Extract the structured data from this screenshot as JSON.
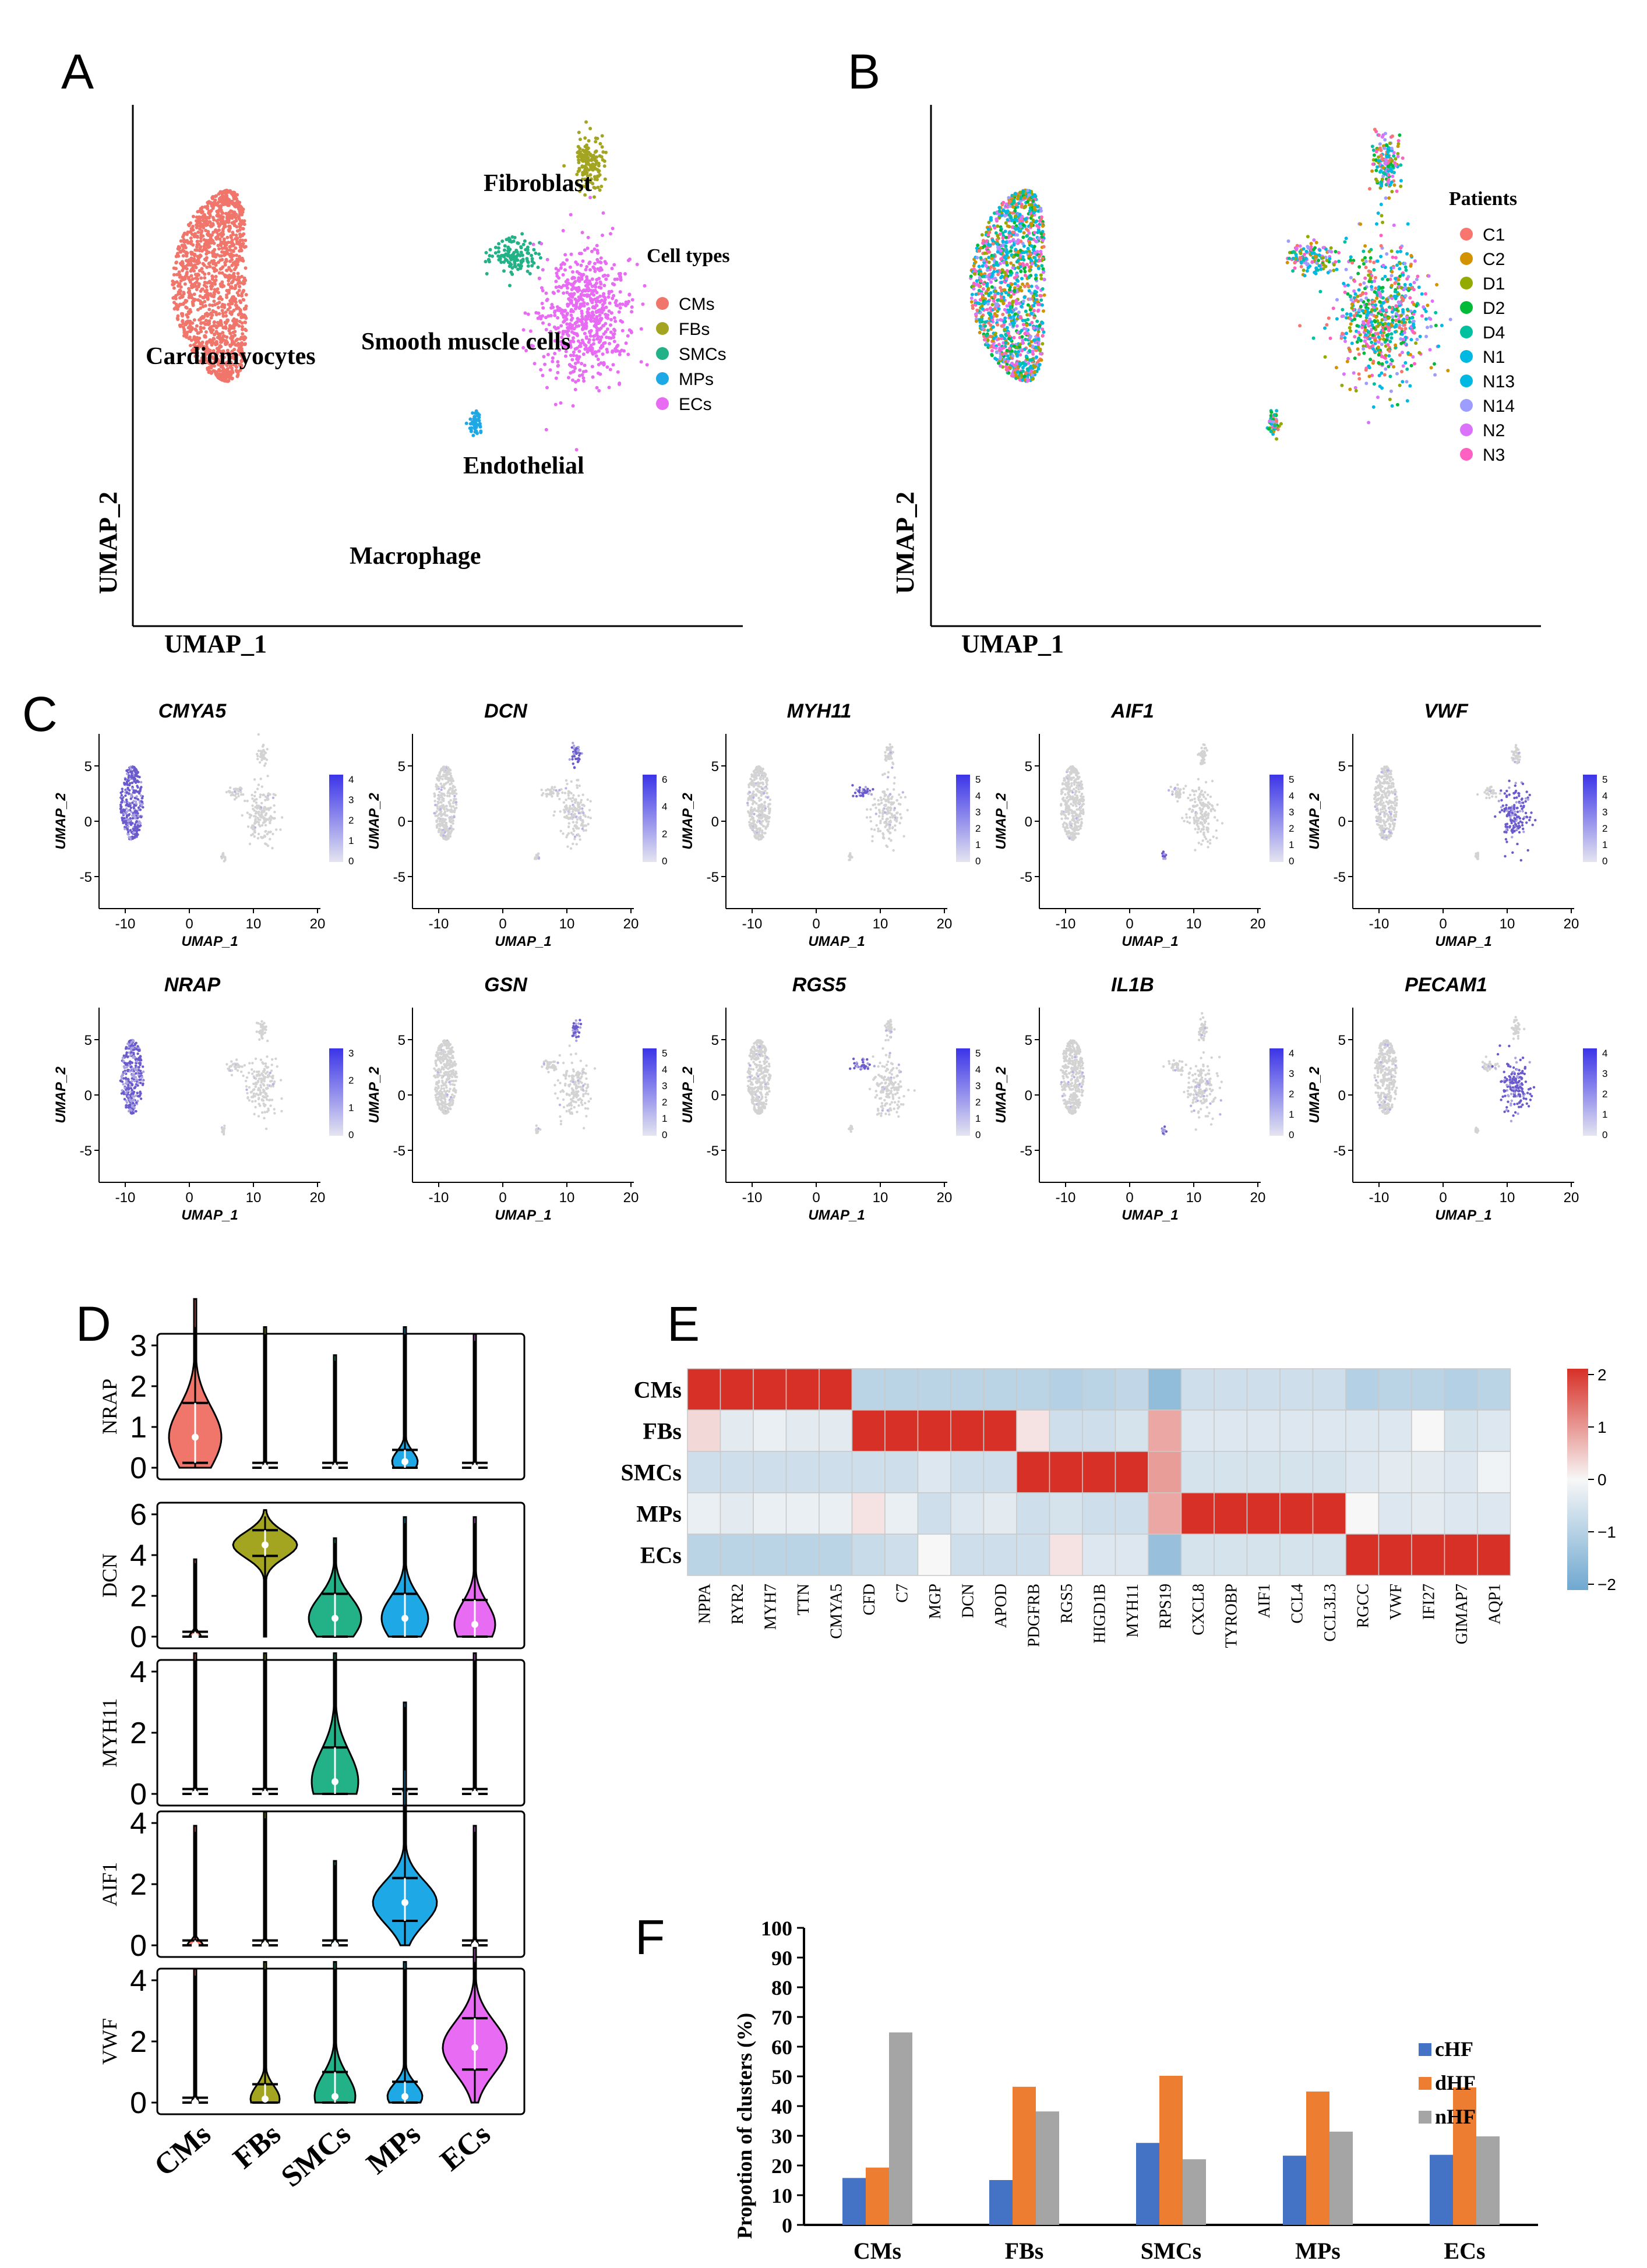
{
  "panels": {
    "A": {
      "label": "A",
      "xlabel": "UMAP_1",
      "ylabel": "UMAP_2",
      "legend_title": "Cell types",
      "legend": [
        {
          "name": "CMs",
          "color": "#F0756B"
        },
        {
          "name": "FBs",
          "color": "#A3A520"
        },
        {
          "name": "SMCs",
          "color": "#23B187"
        },
        {
          "name": "MPs",
          "color": "#1EA8E6"
        },
        {
          "name": "ECs",
          "color": "#E76BF3"
        }
      ],
      "annotations": [
        "Fibroblast",
        "Cardiomyocytes",
        "Smooth muscle cells",
        "Endothelial",
        "Macrophage"
      ]
    },
    "B": {
      "label": "B",
      "xlabel": "UMAP_1",
      "ylabel": "UMAP_2",
      "legend_title": "Patients",
      "legend": [
        {
          "name": "C1",
          "color": "#F8766D"
        },
        {
          "name": "C2",
          "color": "#D39200"
        },
        {
          "name": "D1",
          "color": "#93AA00"
        },
        {
          "name": "D2",
          "color": "#00BA38"
        },
        {
          "name": "D4",
          "color": "#00C19F"
        },
        {
          "name": "N1",
          "color": "#00B9E3"
        },
        {
          "name": "N13",
          "color": "#00B9E3"
        },
        {
          "name": "N14",
          "color": "#9D9DFF"
        },
        {
          "name": "N2",
          "color": "#DB72FB"
        },
        {
          "name": "N3",
          "color": "#FF61C3"
        }
      ]
    },
    "C": {
      "label": "C",
      "xlabel": "UMAP_1",
      "ylabel": "UMAP_2",
      "xticks": [
        "-10",
        "0",
        "10",
        "20"
      ],
      "yticks": [
        "5",
        "0",
        "-5"
      ],
      "genes": [
        {
          "name": "CMYA5",
          "cluster": "CMs",
          "scale": [
            "4",
            "3",
            "2",
            "1",
            "0"
          ]
        },
        {
          "name": "DCN",
          "cluster": "FBs",
          "scale": [
            "6",
            "4",
            "2",
            "0"
          ]
        },
        {
          "name": "MYH11",
          "cluster": "SMCs",
          "scale": [
            "5",
            "4",
            "3",
            "2",
            "1",
            "0"
          ]
        },
        {
          "name": "AIF1",
          "cluster": "MPs",
          "scale": [
            "5",
            "4",
            "3",
            "2",
            "1",
            "0"
          ]
        },
        {
          "name": "VWF",
          "cluster": "ECs",
          "scale": [
            "5",
            "4",
            "3",
            "2",
            "1",
            "0"
          ]
        },
        {
          "name": "NRAP",
          "cluster": "CMs",
          "scale": [
            "3",
            "2",
            "1",
            "0"
          ]
        },
        {
          "name": "GSN",
          "cluster": "FBs",
          "scale": [
            "5",
            "4",
            "3",
            "2",
            "1",
            "0"
          ]
        },
        {
          "name": "RGS5",
          "cluster": "SMCs",
          "scale": [
            "5",
            "4",
            "3",
            "2",
            "1",
            "0"
          ]
        },
        {
          "name": "IL1B",
          "cluster": "MPs",
          "scale": [
            "4",
            "3",
            "2",
            "1",
            "0"
          ]
        },
        {
          "name": "PECAM1",
          "cluster": "ECs",
          "scale": [
            "4",
            "3",
            "2",
            "1",
            "0"
          ]
        }
      ]
    },
    "D": {
      "label": "D",
      "categories": [
        "CMs",
        "FBs",
        "SMCs",
        "MPs",
        "ECs"
      ],
      "rows": [
        {
          "gene": "NRAP",
          "ticks": [
            "3",
            "2",
            "1",
            "0"
          ],
          "max": 3,
          "color_idx": 0
        },
        {
          "gene": "DCN",
          "ticks": [
            "6",
            "4",
            "2",
            "0"
          ],
          "max": 6,
          "color_idx": 1
        },
        {
          "gene": "MYH11",
          "ticks": [
            "4",
            "2",
            "0"
          ],
          "max": 4,
          "color_idx": 2
        },
        {
          "gene": "AIF1",
          "ticks": [
            "4",
            "2",
            "0"
          ],
          "max": 4,
          "color_idx": 3
        },
        {
          "gene": "VWF",
          "ticks": [
            "4",
            "2",
            "0"
          ],
          "max": 4,
          "color_idx": 4
        }
      ],
      "colors": [
        "#F0756B",
        "#A3A520",
        "#23B187",
        "#1EA8E6",
        "#E76BF3"
      ]
    },
    "E": {
      "label": "E",
      "rows": [
        "CMs",
        "FBs",
        "SMCs",
        "MPs",
        "ECs"
      ],
      "columns": [
        "NPPA",
        "RYR2",
        "MYH7",
        "TTN",
        "CMYA5",
        "CFD",
        "C7",
        "MGP",
        "DCN",
        "APOD",
        "PDGFRB",
        "RGS5",
        "HIGD1B",
        "MYH11",
        "RPS19",
        "CXCL8",
        "TYROBP",
        "AIF1",
        "CCL4",
        "CCL3L3",
        "RGCC",
        "VWF",
        "IFI27",
        "GIMAP7",
        "AQP1"
      ],
      "colorbar_ticks": [
        "2",
        "1",
        "0",
        "−1",
        "−2"
      ],
      "colors": {
        "high": "#D73027",
        "mid": "#F7F7F7",
        "low": "#6FA8D0"
      }
    },
    "F": {
      "label": "F"
    }
  },
  "chart_data": {
    "type": "bar",
    "title": "",
    "xlabel": "",
    "ylabel": "Propotion of clusters (%)",
    "ylim": [
      0,
      100
    ],
    "yticks": [
      "0",
      "10",
      "20",
      "30",
      "40",
      "50",
      "60",
      "70",
      "80",
      "90",
      "100"
    ],
    "categories": [
      "CMs",
      "FBs",
      "SMCs",
      "MPs",
      "ECs"
    ],
    "series": [
      {
        "name": "cHF",
        "color": "#4472C4",
        "values": [
          15.8,
          15.1,
          27.6,
          23.3,
          23.6
        ]
      },
      {
        "name": "dHF",
        "color": "#ED7D31",
        "values": [
          19.3,
          46.5,
          50.2,
          44.9,
          46.3
        ]
      },
      {
        "name": "nHF",
        "color": "#A5A5A5",
        "values": [
          64.8,
          38.2,
          22.1,
          31.4,
          29.8
        ]
      }
    ],
    "legend_position": "right"
  },
  "heatmap_data": {
    "type": "heatmap",
    "range": [
      -2,
      2
    ],
    "values": [
      [
        2.0,
        2.0,
        2.0,
        2.0,
        2.0,
        -0.9,
        -0.9,
        -0.9,
        -0.9,
        -0.9,
        -0.9,
        -1.0,
        -0.9,
        -0.8,
        -1.5,
        -0.6,
        -0.6,
        -0.6,
        -0.6,
        -0.6,
        -1.0,
        -0.9,
        -0.9,
        -1.0,
        -0.9
      ],
      [
        0.3,
        -0.3,
        -0.2,
        -0.3,
        -0.3,
        2.0,
        2.0,
        2.0,
        2.0,
        2.0,
        0.2,
        -0.6,
        -0.6,
        -0.5,
        0.8,
        -0.4,
        -0.4,
        -0.4,
        -0.4,
        -0.4,
        -0.4,
        -0.4,
        0.0,
        -0.5,
        -0.4
      ],
      [
        -0.6,
        -0.6,
        -0.6,
        -0.6,
        -0.6,
        -0.6,
        -0.6,
        -0.4,
        -0.6,
        -0.6,
        2.0,
        2.0,
        2.0,
        2.0,
        0.9,
        -0.5,
        -0.5,
        -0.5,
        -0.5,
        -0.5,
        -0.4,
        -0.3,
        -0.3,
        -0.4,
        -0.1
      ],
      [
        -0.2,
        -0.3,
        -0.2,
        -0.2,
        -0.2,
        0.2,
        -0.2,
        -0.6,
        -0.4,
        -0.3,
        -0.6,
        -0.5,
        -0.6,
        -0.6,
        0.8,
        2.0,
        2.0,
        2.0,
        2.0,
        2.0,
        0.0,
        -0.4,
        -0.3,
        -0.4,
        -0.4
      ],
      [
        -0.9,
        -0.9,
        -0.9,
        -0.9,
        -0.9,
        -0.7,
        -0.6,
        0.0,
        -0.6,
        -0.6,
        -0.6,
        0.2,
        -0.4,
        -0.4,
        -1.4,
        -0.5,
        -0.5,
        -0.5,
        -0.5,
        -0.5,
        2.0,
        2.0,
        2.0,
        2.0,
        2.0
      ]
    ]
  }
}
